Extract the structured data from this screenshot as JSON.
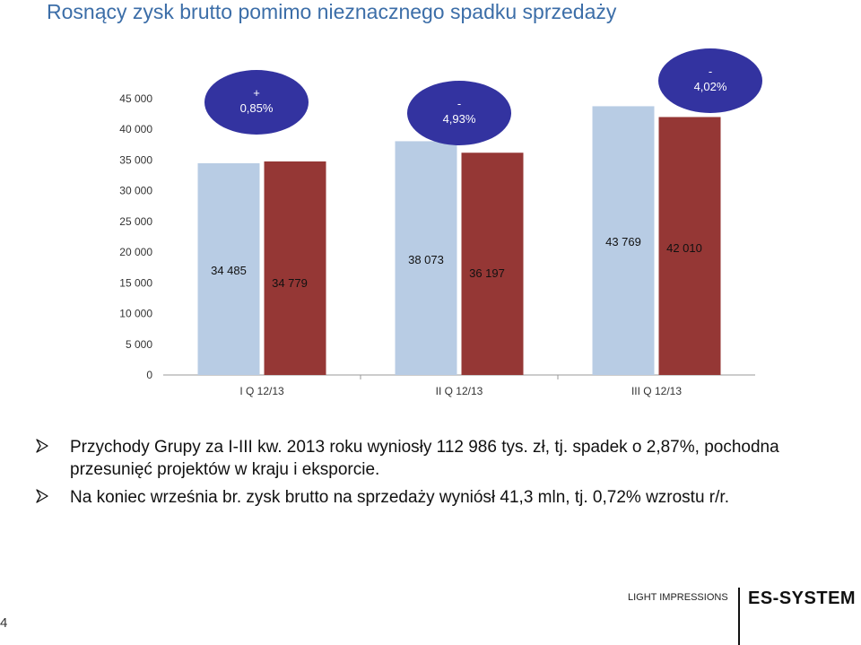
{
  "slide": {
    "title": "Rosnący zysk brutto pomimo nieznacznego spadku sprzedaży",
    "page_number": "4",
    "footer_brand": "LIGHT IMPRESSIONS",
    "footer_logo": "ES-SYSTEM"
  },
  "bullets": [
    "Przychody Grupy za I-III kw. 2013 roku wyniosły 112 986 tys. zł, tj. spadek o 2,87%, pochodna przesunięć projektów w kraju i eksporcie.",
    "Na koniec września br. zysk brutto na sprzedaży wyniósł 41,3 mln, tj. 0,72% wzrostu r/r."
  ],
  "chart_data": {
    "type": "bar",
    "categories": [
      "I Q 12/13",
      "II Q 12/13",
      "III Q 12/13"
    ],
    "series": [
      {
        "values": [
          34485,
          38073,
          43769
        ],
        "labels": [
          "34 485",
          "38 073",
          "43 769"
        ],
        "color": "#b8cce4"
      },
      {
        "values": [
          34779,
          36197,
          42010
        ],
        "labels": [
          "34 779",
          "36 197",
          "42 010"
        ],
        "color": "#953735"
      }
    ],
    "y_ticks": [
      0,
      5000,
      10000,
      15000,
      20000,
      25000,
      30000,
      35000,
      40000,
      45000
    ],
    "y_tick_labels": [
      "0",
      "5 000",
      "10 000",
      "15 000",
      "20 000",
      "25 000",
      "30 000",
      "35 000",
      "40 000",
      "45 000"
    ],
    "ylim": [
      0,
      45000
    ],
    "gridlines": false,
    "legend": "none",
    "annotations": [
      {
        "sign": "+",
        "text": "0,85%",
        "category": "I Q 12/13"
      },
      {
        "sign": "-",
        "text": "4,93%",
        "category": "II Q 12/13"
      },
      {
        "sign": "-",
        "text": "4,02%",
        "category": "III Q 12/13"
      }
    ],
    "annotation_color": "#3333a0"
  }
}
